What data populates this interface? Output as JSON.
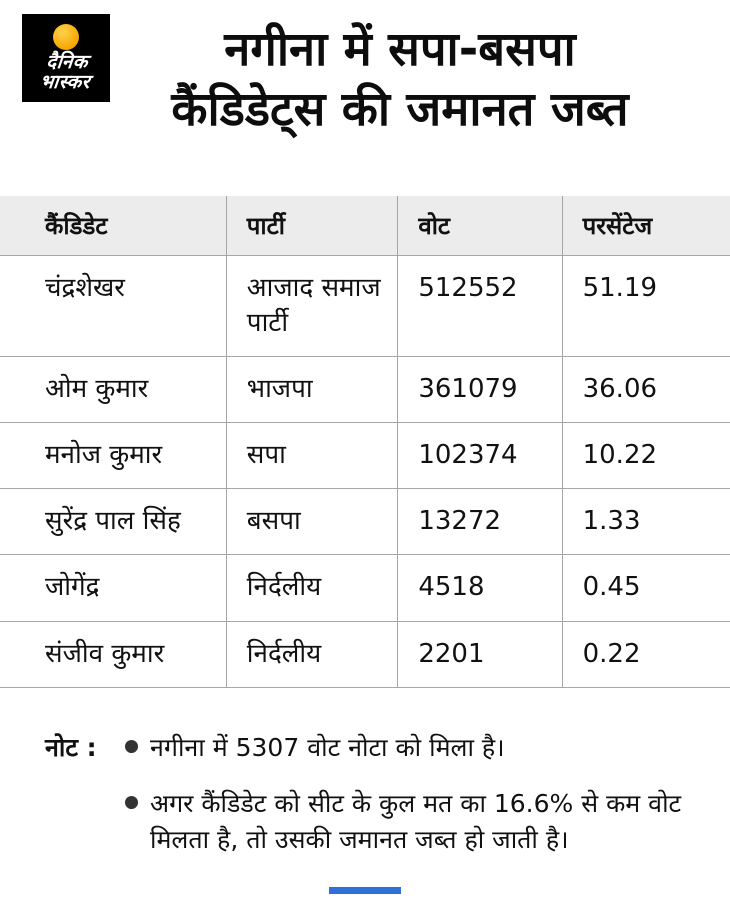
{
  "brand": {
    "name_line1": "दैनिक",
    "name_line2": "भास्कर"
  },
  "title": {
    "line1": "नगीना में सपा-बसपा",
    "line2": "कैंडिडेट्स की जमानत जब्त"
  },
  "chart_data": {
    "type": "table",
    "title": "नगीना में सपा-बसपा कैंडिडेट्स की जमानत जब्त",
    "columns": [
      "कैंडिडेट",
      "पार्टी",
      "वोट",
      "परसेंटेज"
    ],
    "rows": [
      [
        "चंद्रशेखर",
        "आजाद समाज पार्टी",
        "512552",
        "51.19"
      ],
      [
        "ओम कुमार",
        "भाजपा",
        "361079",
        "36.06"
      ],
      [
        "मनोज कुमार",
        "सपा",
        "102374",
        "10.22"
      ],
      [
        "सुरेंद्र पाल सिंह",
        "बसपा",
        "13272",
        "1.33"
      ],
      [
        "जोगेंद्र",
        "निर्दलीय",
        "4518",
        "0.45"
      ],
      [
        "संजीव कुमार",
        "निर्दलीय",
        "2201",
        "0.22"
      ]
    ]
  },
  "note": {
    "label": "नोट :",
    "bullets": [
      "नगीना में 5307 वोट नोटा को मिला है।",
      "अगर कैंडिडेट को सीट के कुल मत का 16.6% से कम वोट मिलता है, तो उसकी जमानत जब्त हो जाती है।"
    ]
  },
  "colors": {
    "accent_orange": "#F7A600",
    "header_bg": "#ECECEC",
    "border_gray": "#A6A6A6",
    "bottom_bar_blue": "#2E6FD8",
    "logo_bg": "#000000"
  }
}
